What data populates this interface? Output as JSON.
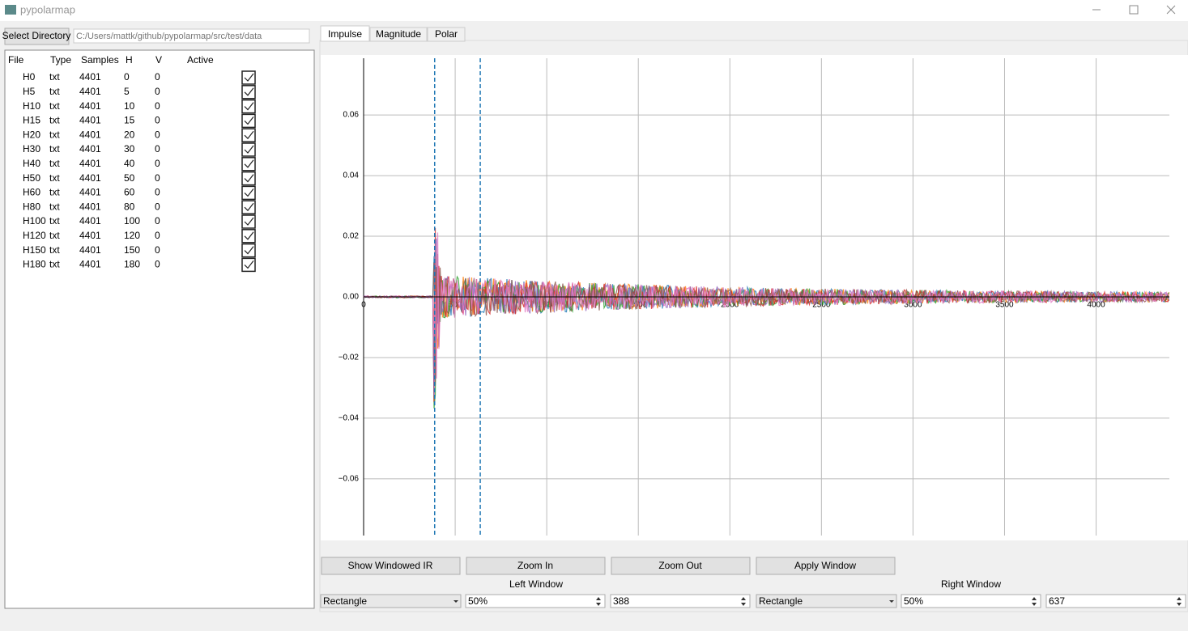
{
  "window": {
    "title": "pypolarmap"
  },
  "toolbar": {
    "button": "Select Directory",
    "path": "C:/Users/mattk/github/pypolarmap/src/test/data"
  },
  "table": {
    "columns": [
      "File",
      "Type",
      "Samples",
      "H",
      "V",
      "Active"
    ],
    "rows": [
      [
        "H0",
        "txt",
        4401,
        0,
        0
      ],
      [
        "H5",
        "txt",
        4401,
        5,
        0
      ],
      [
        "H10",
        "txt",
        4401,
        10,
        0
      ],
      [
        "H15",
        "txt",
        4401,
        15,
        0
      ],
      [
        "H20",
        "txt",
        4401,
        20,
        0
      ],
      [
        "H30",
        "txt",
        4401,
        30,
        0
      ],
      [
        "H40",
        "txt",
        4401,
        40,
        0
      ],
      [
        "H50",
        "txt",
        4401,
        50,
        0
      ],
      [
        "H60",
        "txt",
        4401,
        60,
        0
      ],
      [
        "H80",
        "txt",
        4401,
        80,
        0
      ],
      [
        "H100",
        "txt",
        4401,
        100,
        0
      ],
      [
        "H120",
        "txt",
        4401,
        120,
        0
      ],
      [
        "H150",
        "txt",
        4401,
        150,
        0
      ],
      [
        "H180",
        "txt",
        4401,
        180,
        0
      ]
    ],
    "active": [
      true,
      true,
      true,
      true,
      true,
      true,
      true,
      true,
      true,
      true,
      true,
      true,
      true,
      true
    ]
  },
  "tabs": [
    "Impulse",
    "Magnitude",
    "Polar"
  ],
  "chart_data": {
    "type": "line",
    "xlim": [
      0,
      4400
    ],
    "ylim": [
      -0.0787,
      0.0787
    ],
    "xticks": [
      0,
      500,
      1000,
      1500,
      2000,
      2500,
      3000,
      3500,
      4000
    ],
    "yticks": [
      {
        "value": -0.06,
        "label": "−0.06"
      },
      {
        "value": -0.04,
        "label": "−0.04"
      },
      {
        "value": -0.02,
        "label": "−0.02"
      },
      {
        "value": 0,
        "label": "0.00"
      },
      0.02,
      0.04,
      0.06
    ],
    "grid": true
  },
  "buttons": [
    "Show Windowed IR",
    "Zoom In",
    "Zoom Out",
    "Apply Window"
  ],
  "controls": {
    "left_window": {
      "label": "Left Window",
      "type": "Rectangle",
      "percent": "50%",
      "samples": 388
    },
    "right_window": {
      "label": "Right Window",
      "type": "Rectangle",
      "percent": "50%",
      "samples": 637
    }
  }
}
